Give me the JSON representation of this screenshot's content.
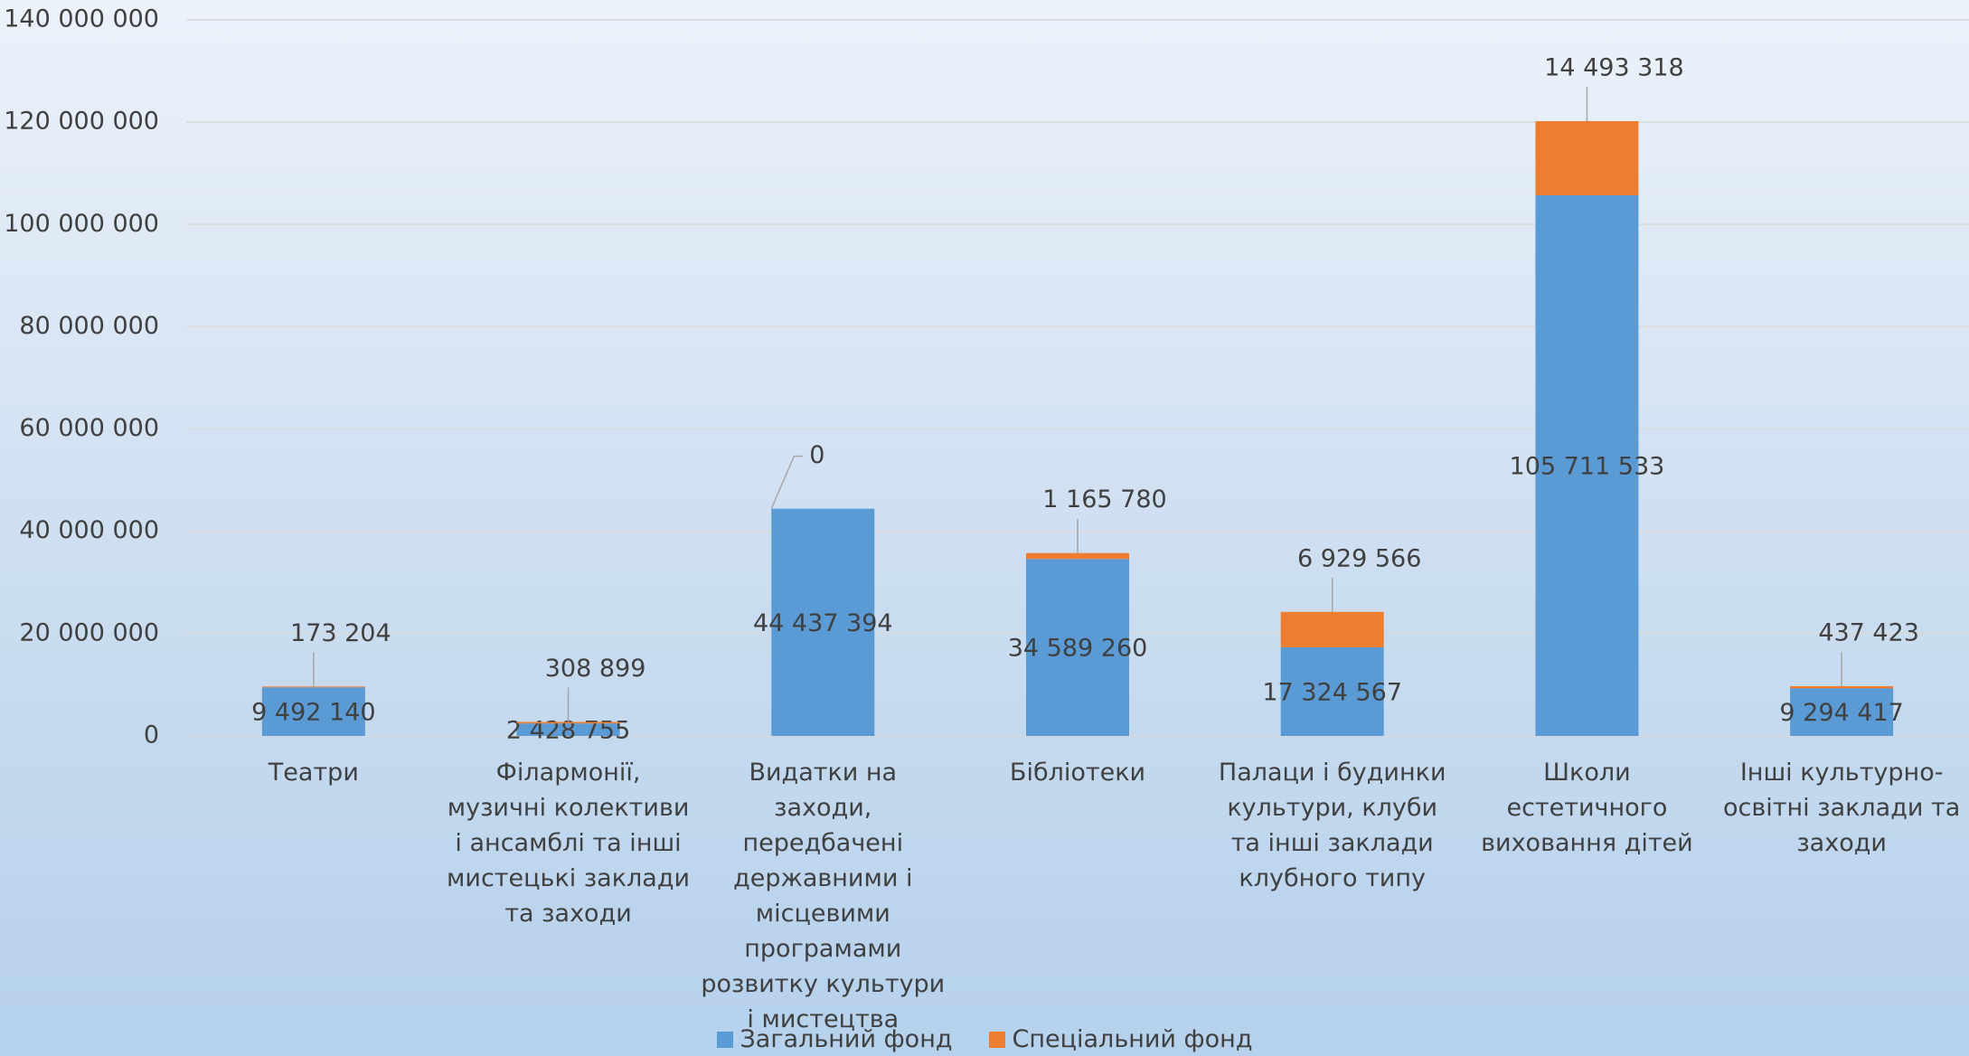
{
  "chart_data": {
    "type": "stacked_bar",
    "categories": [
      "Театри",
      "Філармонії, музичні колективи і ансамблі та інші мистецькі заклади та заходи",
      "Видатки на заходи, передбачені державними і місцевими програмами розвитку культури і мистецтва",
      "Бібліотеки",
      "Палаци і будинки культури, клуби та інші заклади клубного типу",
      "Школи естетичного виховання дітей",
      "Інші культурно-освітні заклади та заходи"
    ],
    "series": [
      {
        "name": "Загальний фонд",
        "color": "#5b9bd5",
        "values": [
          9492140,
          2428755,
          44437394,
          34589260,
          17324567,
          105711533,
          9294417
        ],
        "value_labels": [
          "9 492 140",
          "2 428 755",
          "44 437 394",
          "34 589 260",
          "17 324 567",
          "105 711 533",
          "9 294 417"
        ]
      },
      {
        "name": "Спеціальний фонд",
        "color": "#ed7d31",
        "values": [
          173204,
          308899,
          0,
          1165780,
          6929566,
          14493318,
          437423
        ],
        "value_labels": [
          "173 204",
          "308 899",
          "0",
          "1 165 780",
          "6 929 566",
          "14 493 318",
          "437 423"
        ]
      }
    ],
    "ylim": [
      0,
      140000000
    ],
    "yticks": [
      {
        "value": 0,
        "label": "0"
      },
      {
        "value": 20000000,
        "label": "20 000 000"
      },
      {
        "value": 40000000,
        "label": "40 000 000"
      },
      {
        "value": 60000000,
        "label": "60 000 000"
      },
      {
        "value": 80000000,
        "label": "80 000 000"
      },
      {
        "value": 100000000,
        "label": "100 000 000"
      },
      {
        "value": 120000000,
        "label": "120 000 000"
      },
      {
        "value": 140000000,
        "label": "140 000 000"
      }
    ],
    "grid": true,
    "legend": "bottom"
  }
}
